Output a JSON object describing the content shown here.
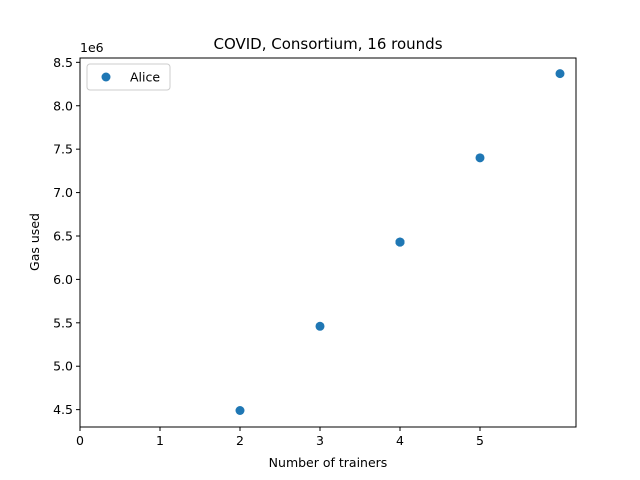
{
  "chart_data": {
    "type": "scatter",
    "title": "COVID, Consortium, 16 rounds",
    "xlabel": "Number of trainers",
    "ylabel": "Gas used",
    "y_offset_label": "1e6",
    "xlim": [
      0,
      6.2
    ],
    "ylim": [
      4.3,
      8.55
    ],
    "x_ticks": [
      0,
      1,
      2,
      3,
      4,
      5
    ],
    "x_tick_labels": [
      "0",
      "1",
      "2",
      "3",
      "4",
      "5"
    ],
    "y_ticks": [
      4.5,
      5.0,
      5.5,
      6.0,
      6.5,
      7.0,
      7.5,
      8.0,
      8.5
    ],
    "y_tick_labels": [
      "4.5",
      "5.0",
      "5.5",
      "6.0",
      "6.5",
      "7.0",
      "7.5",
      "8.0",
      "8.5"
    ],
    "grid": false,
    "legend_position": "top-left",
    "series": [
      {
        "name": "Alice",
        "color": "#1f77b4",
        "x": [
          2,
          3,
          4,
          4,
          4,
          5,
          6
        ],
        "y": [
          4.49,
          5.46,
          6.43,
          6.43,
          6.43,
          7.4,
          8.37
        ]
      }
    ]
  }
}
